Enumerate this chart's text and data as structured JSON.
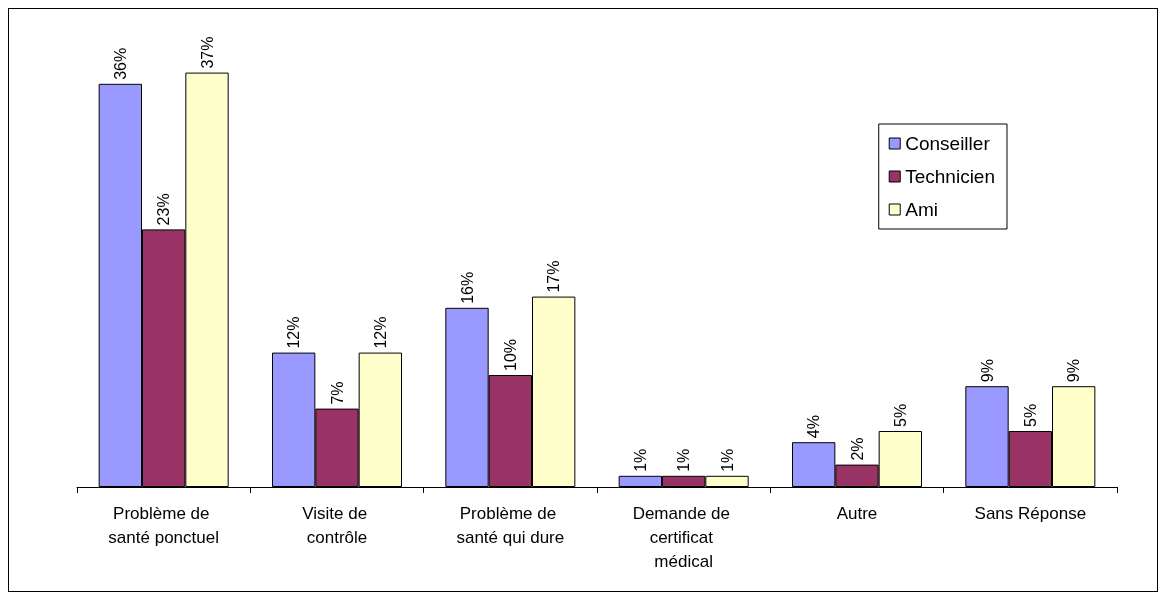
{
  "chart_data": {
    "type": "bar",
    "categories": [
      "Problème de santé ponctuel",
      "Visite de contrôle",
      "Problème de santé qui dure",
      "Demande de certificat médical",
      "Autre",
      "Sans Réponse"
    ],
    "series": [
      {
        "name": "Conseiller",
        "color": "#9999ff",
        "values": [
          36,
          12,
          16,
          1,
          4,
          9
        ],
        "value_labels": [
          "36%",
          "12%",
          "16%",
          "1%",
          "4%",
          "9%"
        ]
      },
      {
        "name": "Technicien",
        "color": "#993366",
        "values": [
          23,
          7,
          10,
          1,
          2,
          5
        ],
        "value_labels": [
          "23%",
          "7%",
          "10%",
          "1%",
          "2%",
          "5%"
        ]
      },
      {
        "name": "Ami",
        "color": "#ffffcc",
        "values": [
          37,
          12,
          17,
          1,
          5,
          9
        ],
        "value_labels": [
          "37%",
          "12%",
          "17%",
          "1%",
          "5%",
          "9%"
        ]
      }
    ],
    "legend": "right",
    "grid": false
  }
}
